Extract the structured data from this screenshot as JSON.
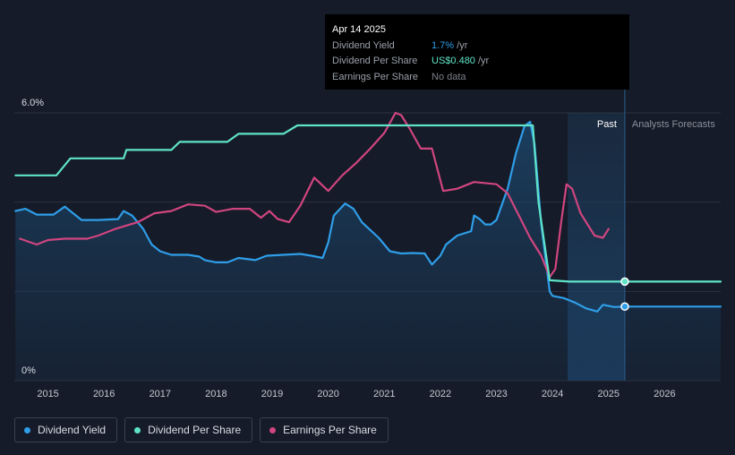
{
  "tooltip": {
    "date": "Apr 14 2025",
    "rows": [
      {
        "label": "Dividend Yield",
        "value": "1.7%",
        "suffix": " /yr"
      },
      {
        "label": "Dividend Per Share",
        "value": "US$0.480",
        "suffix": " /yr"
      },
      {
        "label": "Earnings Per Share",
        "value": "No data",
        "suffix": ""
      }
    ]
  },
  "regions": {
    "past": "Past",
    "forecast": "Analysts Forecasts"
  },
  "legend": [
    {
      "label": "Dividend Yield",
      "color": "#2f9ee8"
    },
    {
      "label": "Dividend Per Share",
      "color": "#5fe3c8"
    },
    {
      "label": "Earnings Per Share",
      "color": "#d0457f"
    }
  ],
  "chart_data": {
    "type": "line",
    "y_tick_labels": [
      "6.0%",
      "0%"
    ],
    "ylim": [
      0,
      6.0
    ],
    "xlim": [
      2014.4,
      2027.0
    ],
    "x_tick_labels": [
      "2015",
      "2016",
      "2017",
      "2018",
      "2019",
      "2020",
      "2021",
      "2022",
      "2023",
      "2024",
      "2025",
      "2026"
    ],
    "past_region": [
      2024.27,
      2025.29
    ],
    "tooltip_x": 2025.29,
    "series": [
      {
        "name": "Dividend Yield",
        "color": "#2f9ee8",
        "fill": true,
        "points": [
          [
            2014.42,
            3.8
          ],
          [
            2014.6,
            3.85
          ],
          [
            2014.8,
            3.72
          ],
          [
            2015.1,
            3.72
          ],
          [
            2015.3,
            3.9
          ],
          [
            2015.45,
            3.75
          ],
          [
            2015.6,
            3.6
          ],
          [
            2015.9,
            3.6
          ],
          [
            2016.25,
            3.62
          ],
          [
            2016.35,
            3.8
          ],
          [
            2016.5,
            3.7
          ],
          [
            2016.7,
            3.4
          ],
          [
            2016.85,
            3.05
          ],
          [
            2017.0,
            2.9
          ],
          [
            2017.2,
            2.82
          ],
          [
            2017.5,
            2.82
          ],
          [
            2017.7,
            2.78
          ],
          [
            2017.8,
            2.7
          ],
          [
            2018.0,
            2.65
          ],
          [
            2018.2,
            2.65
          ],
          [
            2018.4,
            2.75
          ],
          [
            2018.7,
            2.7
          ],
          [
            2018.9,
            2.8
          ],
          [
            2019.2,
            2.82
          ],
          [
            2019.5,
            2.84
          ],
          [
            2019.7,
            2.8
          ],
          [
            2019.9,
            2.75
          ],
          [
            2020.0,
            3.1
          ],
          [
            2020.1,
            3.7
          ],
          [
            2020.3,
            3.97
          ],
          [
            2020.45,
            3.85
          ],
          [
            2020.6,
            3.55
          ],
          [
            2020.9,
            3.2
          ],
          [
            2021.1,
            2.9
          ],
          [
            2021.3,
            2.85
          ],
          [
            2021.5,
            2.86
          ],
          [
            2021.72,
            2.85
          ],
          [
            2021.85,
            2.6
          ],
          [
            2022.0,
            2.8
          ],
          [
            2022.1,
            3.05
          ],
          [
            2022.3,
            3.25
          ],
          [
            2022.55,
            3.35
          ],
          [
            2022.6,
            3.7
          ],
          [
            2022.7,
            3.62
          ],
          [
            2022.8,
            3.5
          ],
          [
            2022.9,
            3.5
          ],
          [
            2023.0,
            3.6
          ],
          [
            2023.2,
            4.3
          ],
          [
            2023.35,
            5.1
          ],
          [
            2023.5,
            5.7
          ],
          [
            2023.6,
            5.8
          ],
          [
            2023.68,
            5.3
          ],
          [
            2023.8,
            3.5
          ],
          [
            2023.95,
            2.0
          ],
          [
            2024.0,
            1.9
          ],
          [
            2024.2,
            1.85
          ],
          [
            2024.4,
            1.75
          ],
          [
            2024.6,
            1.62
          ],
          [
            2024.8,
            1.55
          ],
          [
            2024.9,
            1.7
          ],
          [
            2025.1,
            1.65
          ],
          [
            2025.29,
            1.66
          ],
          [
            2025.5,
            1.66
          ],
          [
            2027.0,
            1.66
          ]
        ]
      },
      {
        "name": "Dividend Per Share",
        "color": "#5fe3c8",
        "fill": false,
        "points": [
          [
            2014.42,
            4.6
          ],
          [
            2015.15,
            4.6
          ],
          [
            2015.4,
            4.98
          ],
          [
            2016.35,
            4.98
          ],
          [
            2016.4,
            5.17
          ],
          [
            2017.2,
            5.17
          ],
          [
            2017.35,
            5.35
          ],
          [
            2018.2,
            5.35
          ],
          [
            2018.4,
            5.53
          ],
          [
            2019.2,
            5.53
          ],
          [
            2019.45,
            5.72
          ],
          [
            2023.65,
            5.72
          ],
          [
            2023.75,
            4.0
          ],
          [
            2023.95,
            2.25
          ],
          [
            2024.3,
            2.22
          ],
          [
            2025.29,
            2.22
          ],
          [
            2027.0,
            2.22
          ]
        ]
      },
      {
        "name": "Earnings Per Share",
        "color": "#d0457f",
        "fill": false,
        "points": [
          [
            2014.5,
            3.18
          ],
          [
            2014.8,
            3.05
          ],
          [
            2015.0,
            3.15
          ],
          [
            2015.3,
            3.18
          ],
          [
            2015.7,
            3.18
          ],
          [
            2015.9,
            3.25
          ],
          [
            2016.2,
            3.4
          ],
          [
            2016.6,
            3.55
          ],
          [
            2016.9,
            3.75
          ],
          [
            2017.2,
            3.8
          ],
          [
            2017.5,
            3.95
          ],
          [
            2017.8,
            3.92
          ],
          [
            2018.0,
            3.78
          ],
          [
            2018.3,
            3.85
          ],
          [
            2018.6,
            3.85
          ],
          [
            2018.8,
            3.65
          ],
          [
            2018.95,
            3.8
          ],
          [
            2019.1,
            3.62
          ],
          [
            2019.3,
            3.55
          ],
          [
            2019.5,
            3.92
          ],
          [
            2019.75,
            4.55
          ],
          [
            2020.0,
            4.25
          ],
          [
            2020.25,
            4.6
          ],
          [
            2020.5,
            4.88
          ],
          [
            2020.75,
            5.2
          ],
          [
            2021.0,
            5.55
          ],
          [
            2021.2,
            6.0
          ],
          [
            2021.3,
            5.95
          ],
          [
            2021.45,
            5.65
          ],
          [
            2021.65,
            5.2
          ],
          [
            2021.85,
            5.2
          ],
          [
            2022.05,
            4.25
          ],
          [
            2022.3,
            4.3
          ],
          [
            2022.6,
            4.45
          ],
          [
            2023.0,
            4.4
          ],
          [
            2023.2,
            4.2
          ],
          [
            2023.4,
            3.7
          ],
          [
            2023.6,
            3.2
          ],
          [
            2023.8,
            2.8
          ],
          [
            2023.95,
            2.32
          ],
          [
            2024.05,
            2.5
          ],
          [
            2024.15,
            3.5
          ],
          [
            2024.25,
            4.4
          ],
          [
            2024.35,
            4.3
          ],
          [
            2024.5,
            3.75
          ],
          [
            2024.75,
            3.25
          ],
          [
            2024.9,
            3.2
          ],
          [
            2025.0,
            3.4
          ]
        ]
      }
    ]
  }
}
